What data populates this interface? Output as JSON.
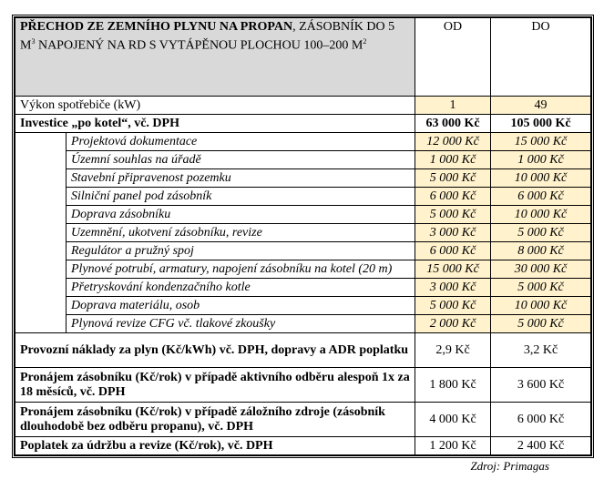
{
  "header": {
    "title_bold": "PŘECHOD ZE ZEMNÍHO PLYNU NA PROPAN",
    "title_rest": ", ZÁSOBNÍK DO 5 M",
    "sup1": "3",
    "title_rest2": " NAPOJENÝ NA RD S VYTÁPĚNOU PLOCHOU 100–200 M",
    "sup2": "2",
    "col_from": "OD",
    "col_to": "DO"
  },
  "power": {
    "label": "Výkon spotřebiče (kW)",
    "from": "1",
    "to": "49"
  },
  "investment": {
    "label": "Investice „po kotel“, vč. DPH",
    "from": "63 000 Kč",
    "to": "105 000 Kč",
    "items": [
      {
        "label": "Projektová dokumentace",
        "from": "12 000 Kč",
        "to": "15 000 Kč"
      },
      {
        "label": "Územní souhlas na úřadě",
        "from": "1 000 Kč",
        "to": "1 000 Kč"
      },
      {
        "label": "Stavební připravenost pozemku",
        "from": "5 000 Kč",
        "to": "10 000 Kč"
      },
      {
        "label": "Silniční panel pod zásobník",
        "from": "6 000 Kč",
        "to": "6 000 Kč"
      },
      {
        "label": "Doprava zásobníku",
        "from": "5 000 Kč",
        "to": "10 000 Kč"
      },
      {
        "label": "Uzemnění, ukotvení zásobníku, revize",
        "from": "3 000 Kč",
        "to": "5 000 Kč"
      },
      {
        "label": "Regulátor a pružný spoj",
        "from": "6 000 Kč",
        "to": "8 000 Kč"
      },
      {
        "label": "Plynové potrubí, armatury, napojení zásobníku na kotel (20 m)",
        "from": "15 000 Kč",
        "to": "30 000 Kč"
      },
      {
        "label": "Přetryskování kondenzačního kotle",
        "from": "3 000 Kč",
        "to": "5 000 Kč"
      },
      {
        "label": "Doprava materiálu, osob",
        "from": "5 000 Kč",
        "to": "10 000 Kč"
      },
      {
        "label": "Plynová revize CFG vč. tlakové zkoušky",
        "from": "2 000 Kč",
        "to": "5 000 Kč"
      }
    ]
  },
  "costs": [
    {
      "label": "Provozní náklady za plyn (Kč/kWh) vč. DPH, dopravy a ADR poplatku",
      "from": "2,9 Kč",
      "to": "3,2 Kč"
    },
    {
      "label": "Pronájem zásobníku (Kč/rok) v případě aktivního odběru alespoň 1x za 18 měsíců, vč. DPH",
      "from": "1 800 Kč",
      "to": "3 600 Kč"
    },
    {
      "label": "Pronájem zásobníku (Kč/rok) v případě záložního zdroje (zásobník dlouhodobě bez odběru propanu), vč. DPH",
      "from": "4 000 Kč",
      "to": "6 000 Kč"
    },
    {
      "label": "Poplatek za údržbu a revize (Kč/rok), vč. DPH",
      "from": "1 200 Kč",
      "to": "2 400 Kč"
    }
  ],
  "source": "Zdroj: Primagas",
  "colors": {
    "header_bg": "#d9d9d9",
    "highlight": "#fff2cc"
  }
}
